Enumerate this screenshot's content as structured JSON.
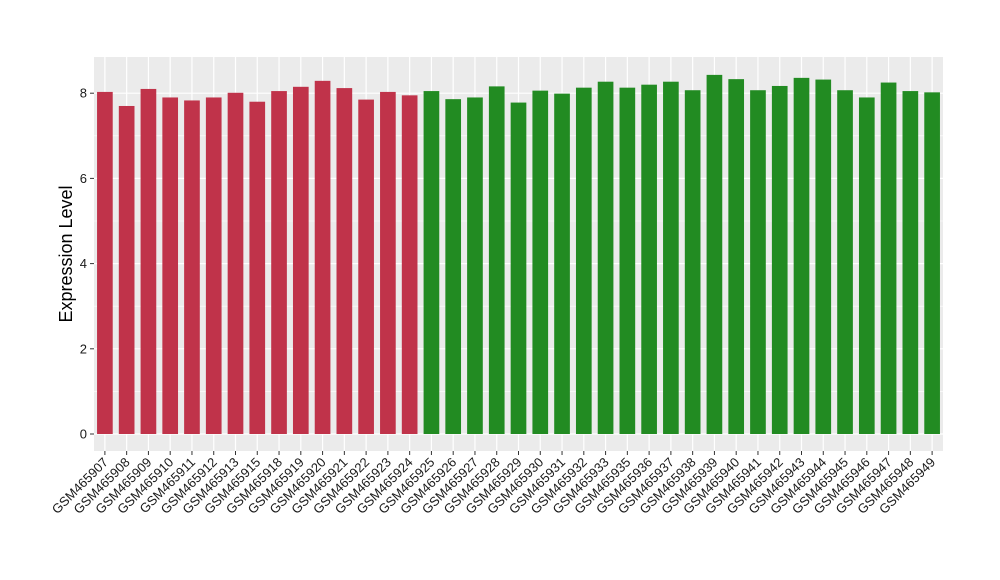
{
  "chart_data": {
    "type": "bar",
    "title": "",
    "xlabel": "",
    "ylabel": "Expression Level",
    "ylim": [
      0,
      8.8
    ],
    "yticks": [
      0,
      2,
      4,
      6,
      8
    ],
    "grid": true,
    "legend": "none",
    "colors": {
      "group1": "#c0334a",
      "group2": "#228b22",
      "panel": "#ebebeb",
      "gridline": "#ffffff"
    },
    "categories": [
      "GSM465907",
      "GSM465908",
      "GSM465909",
      "GSM465910",
      "GSM465911",
      "GSM465912",
      "GSM465913",
      "GSM465915",
      "GSM465918",
      "GSM465919",
      "GSM465920",
      "GSM465921",
      "GSM465922",
      "GSM465923",
      "GSM465924",
      "GSM465925",
      "GSM465926",
      "GSM465927",
      "GSM465928",
      "GSM465929",
      "GSM465930",
      "GSM465931",
      "GSM465932",
      "GSM465933",
      "GSM465935",
      "GSM465936",
      "GSM465937",
      "GSM465938",
      "GSM465939",
      "GSM465940",
      "GSM465941",
      "GSM465942",
      "GSM465943",
      "GSM465944",
      "GSM465945",
      "GSM465946",
      "GSM465947",
      "GSM465948",
      "GSM465949"
    ],
    "values": [
      8.03,
      7.7,
      8.1,
      7.9,
      7.83,
      7.9,
      8.01,
      7.8,
      8.05,
      8.15,
      8.29,
      8.12,
      7.85,
      8.03,
      7.95,
      8.05,
      7.86,
      7.9,
      8.16,
      7.78,
      8.06,
      7.99,
      8.13,
      8.27,
      8.13,
      8.2,
      8.27,
      8.07,
      8.43,
      8.33,
      8.07,
      8.17,
      8.36,
      8.32,
      8.07,
      7.9,
      8.25,
      8.05,
      8.02
    ],
    "groups": [
      1,
      1,
      1,
      1,
      1,
      1,
      1,
      1,
      1,
      1,
      1,
      1,
      1,
      1,
      1,
      2,
      2,
      2,
      2,
      2,
      2,
      2,
      2,
      2,
      2,
      2,
      2,
      2,
      2,
      2,
      2,
      2,
      2,
      2,
      2,
      2,
      2,
      2,
      2
    ]
  }
}
